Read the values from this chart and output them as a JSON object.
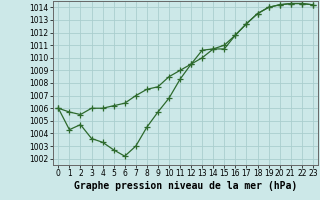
{
  "line1": {
    "x": [
      0,
      1,
      2,
      3,
      4,
      5,
      6,
      7,
      8,
      9,
      10,
      11,
      12,
      13,
      14,
      15,
      16,
      17,
      18,
      19,
      20,
      21,
      22,
      23
    ],
    "y": [
      1006.0,
      1005.7,
      1005.5,
      1006.0,
      1006.0,
      1006.2,
      1006.4,
      1007.0,
      1007.5,
      1007.7,
      1008.5,
      1009.0,
      1009.5,
      1010.0,
      1010.7,
      1010.7,
      1011.8,
      1012.7,
      1013.5,
      1014.0,
      1014.2,
      1014.3,
      1014.3,
      1014.2
    ]
  },
  "line2": {
    "x": [
      0,
      1,
      2,
      3,
      4,
      5,
      6,
      7,
      8,
      9,
      10,
      11,
      12,
      13,
      14,
      15,
      16,
      17,
      18,
      19,
      20,
      21,
      22,
      23
    ],
    "y": [
      1006.0,
      1004.3,
      1004.7,
      1003.6,
      1003.3,
      1002.7,
      1002.2,
      1003.0,
      1004.5,
      1005.7,
      1006.8,
      1008.3,
      1009.5,
      1010.6,
      1010.7,
      1011.0,
      1011.8,
      1012.7,
      1013.5,
      1014.0,
      1014.2,
      1014.3,
      1014.3,
      1014.2
    ]
  },
  "color": "#2d6a2d",
  "bg_color": "#cce8e8",
  "grid_color": "#aacece",
  "xlabel": "Graphe pression niveau de la mer (hPa)",
  "ylim": [
    1001.5,
    1014.5
  ],
  "xlim": [
    -0.5,
    23.5
  ],
  "yticks": [
    1002,
    1003,
    1004,
    1005,
    1006,
    1007,
    1008,
    1009,
    1010,
    1011,
    1012,
    1013,
    1014
  ],
  "xticks": [
    0,
    1,
    2,
    3,
    4,
    5,
    6,
    7,
    8,
    9,
    10,
    11,
    12,
    13,
    14,
    15,
    16,
    17,
    18,
    19,
    20,
    21,
    22,
    23
  ],
  "marker": "+",
  "markersize": 4,
  "linewidth": 0.9,
  "tick_fontsize": 5.5,
  "xlabel_fontsize": 7.0
}
